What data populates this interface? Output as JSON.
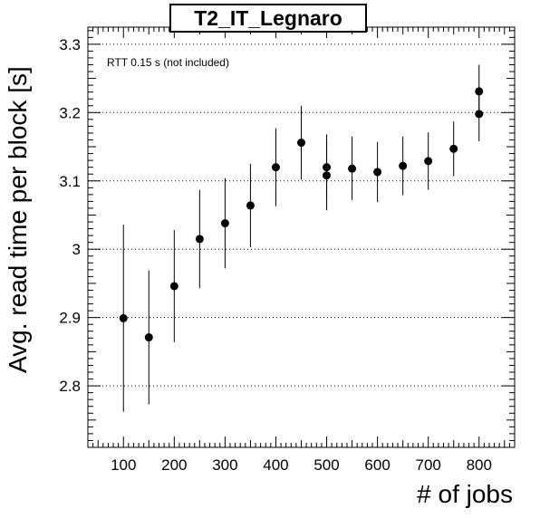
{
  "chart_data": {
    "type": "scatter",
    "title": "T2_IT_Legnaro",
    "annotation": "RTT 0.15 s (not included)",
    "xlabel": "# of jobs",
    "ylabel": "Avg. read time per block [s]",
    "xlim": [
      30,
      870
    ],
    "ylim": [
      2.71,
      3.325
    ],
    "xticks": [
      100,
      200,
      300,
      400,
      500,
      600,
      700,
      800
    ],
    "yticks": [
      2.8,
      2.9,
      3,
      3.1,
      3.2,
      3.3
    ],
    "ytick_labels": [
      "2.8",
      "2.9",
      "3",
      "3.1",
      "3.2",
      "3.3"
    ],
    "grid": "y-dotted",
    "marker_color": "#000000",
    "points": [
      {
        "x": 100,
        "y": 2.899,
        "ylo": 2.762,
        "yhi": 3.036
      },
      {
        "x": 150,
        "y": 2.871,
        "ylo": 2.773,
        "yhi": 2.969
      },
      {
        "x": 200,
        "y": 2.946,
        "ylo": 2.864,
        "yhi": 3.028
      },
      {
        "x": 250,
        "y": 3.015,
        "ylo": 2.943,
        "yhi": 3.087
      },
      {
        "x": 300,
        "y": 3.038,
        "ylo": 2.972,
        "yhi": 3.104
      },
      {
        "x": 350,
        "y": 3.064,
        "ylo": 3.003,
        "yhi": 3.125
      },
      {
        "x": 400,
        "y": 3.12,
        "ylo": 3.063,
        "yhi": 3.177
      },
      {
        "x": 450,
        "y": 3.156,
        "ylo": 3.102,
        "yhi": 3.21
      },
      {
        "x": 500,
        "y": 3.108,
        "ylo": 3.057,
        "yhi": 3.159
      },
      {
        "x": 500,
        "y": 3.12,
        "ylo": 3.072,
        "yhi": 3.168
      },
      {
        "x": 550,
        "y": 3.118,
        "ylo": 3.072,
        "yhi": 3.165
      },
      {
        "x": 600,
        "y": 3.113,
        "ylo": 3.069,
        "yhi": 3.157
      },
      {
        "x": 650,
        "y": 3.122,
        "ylo": 3.079,
        "yhi": 3.165
      },
      {
        "x": 700,
        "y": 3.129,
        "ylo": 3.087,
        "yhi": 3.171
      },
      {
        "x": 750,
        "y": 3.147,
        "ylo": 3.107,
        "yhi": 3.187
      },
      {
        "x": 800,
        "y": 3.198,
        "ylo": 3.158,
        "yhi": 3.238
      },
      {
        "x": 800,
        "y": 3.231,
        "ylo": 3.193,
        "yhi": 3.27
      }
    ]
  }
}
